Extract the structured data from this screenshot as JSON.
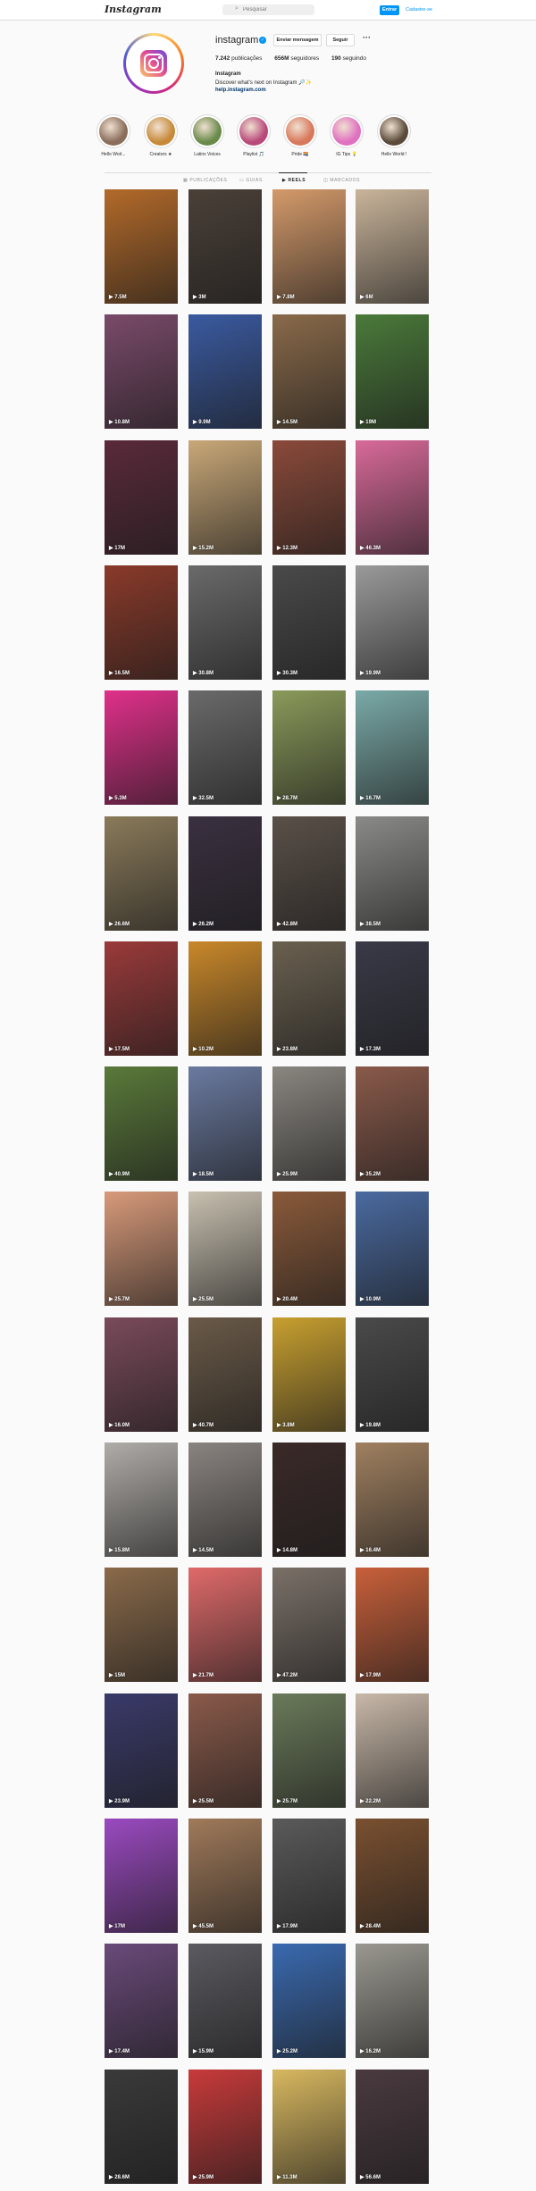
{
  "header": {
    "logo": "Instagram",
    "search_placeholder": "Pesquisar",
    "login_label": "Entrar",
    "signup_label": "Cadastre-se"
  },
  "profile": {
    "username": "instagram",
    "message_label": "Enviar mensagem",
    "follow_label": "Seguir",
    "more_label": "···",
    "stats": [
      {
        "value": "7.242",
        "label": "publicações"
      },
      {
        "value": "656M",
        "label": "seguidores"
      },
      {
        "value": "190",
        "label": "seguindo"
      }
    ],
    "bio_name": "Instagram",
    "bio_text": "Discover what's next on Instagram 🔎✨",
    "bio_link": "help.instagram.com"
  },
  "highlights": [
    {
      "label": "Hello Worl...",
      "color": "#8a6d5a"
    },
    {
      "label": "Creators ★",
      "color": "#c78a3a"
    },
    {
      "label": "Latinx Voices",
      "color": "#6a8a4a"
    },
    {
      "label": "Playlist 🎵",
      "color": "#b84a7a"
    },
    {
      "label": "Pride 🏳️‍🌈",
      "color": "#d8785a"
    },
    {
      "label": "IG Tips 💡",
      "color": "#e070c0"
    },
    {
      "label": "Hello World !",
      "color": "#5a4a3a"
    }
  ],
  "tabs": [
    {
      "label": "PUBLICAÇÕES",
      "icon": "grid-icon"
    },
    {
      "label": "GUIAS",
      "icon": "guide-icon"
    },
    {
      "label": "REELS",
      "icon": "reels-icon"
    },
    {
      "label": "MARCADOS",
      "icon": "tag-icon"
    }
  ],
  "active_tab": 2,
  "reels": [
    {
      "views": "7.5M",
      "color": "#b36a2a"
    },
    {
      "views": "3M",
      "color": "#4a4038"
    },
    {
      "views": "7.8M",
      "color": "#d49a6a"
    },
    {
      "views": "6M",
      "color": "#c9b49a"
    },
    {
      "views": "10.8M",
      "color": "#7a4a6a"
    },
    {
      "views": "9.9M",
      "color": "#3a5aa0"
    },
    {
      "views": "14.5M",
      "color": "#8a6a4a"
    },
    {
      "views": "19M",
      "color": "#4a7a3a"
    },
    {
      "views": "17M",
      "color": "#5a2a3a"
    },
    {
      "views": "15.2M",
      "color": "#c9a878"
    },
    {
      "views": "12.3M",
      "color": "#8a4a3a"
    },
    {
      "views": "46.3M",
      "color": "#d86a9a"
    },
    {
      "views": "16.5M",
      "color": "#8a3a2a"
    },
    {
      "views": "30.8M",
      "color": "#6a6a6a"
    },
    {
      "views": "30.3M",
      "color": "#4a4a4a"
    },
    {
      "views": "19.9M",
      "color": "#9a9a9a"
    },
    {
      "views": "5.3M",
      "color": "#e0308a"
    },
    {
      "views": "32.5M",
      "color": "#6a6a6a"
    },
    {
      "views": "28.7M",
      "color": "#8a9a5a"
    },
    {
      "views": "16.7M",
      "color": "#7aaaa8"
    },
    {
      "views": "26.6M",
      "color": "#8a7a5a"
    },
    {
      "views": "26.2M",
      "color": "#3a3040"
    },
    {
      "views": "42.8M",
      "color": "#5a5048"
    },
    {
      "views": "38.5M",
      "color": "#8a8a88"
    },
    {
      "views": "17.5M",
      "color": "#9a3a3a"
    },
    {
      "views": "10.2M",
      "color": "#c9882a"
    },
    {
      "views": "23.8M",
      "color": "#6a6050"
    },
    {
      "views": "17.3M",
      "color": "#3a3a48"
    },
    {
      "views": "40.9M",
      "color": "#5a7a3a"
    },
    {
      "views": "18.5M",
      "color": "#6a7aa0"
    },
    {
      "views": "25.9M",
      "color": "#8a8680"
    },
    {
      "views": "35.2M",
      "color": "#8a5a4a"
    },
    {
      "views": "25.7M",
      "color": "#d89a7a"
    },
    {
      "views": "25.5M",
      "color": "#c8c0b0"
    },
    {
      "views": "20.4M",
      "color": "#8a5a3a"
    },
    {
      "views": "10.9M",
      "color": "#4a6aa0"
    },
    {
      "views": "16.0M",
      "color": "#7a4a5a"
    },
    {
      "views": "40.7M",
      "color": "#6a5a48"
    },
    {
      "views": "3.8M",
      "color": "#c8a030"
    },
    {
      "views": "19.8M",
      "color": "#4a4a4a"
    },
    {
      "views": "15.8M",
      "color": "#b0aca8"
    },
    {
      "views": "14.5M",
      "color": "#8a8480"
    },
    {
      "views": "14.8M",
      "color": "#3a2a28"
    },
    {
      "views": "16.4M",
      "color": "#a08060"
    },
    {
      "views": "15M",
      "color": "#8a6a4a"
    },
    {
      "views": "21.7M",
      "color": "#e06a6a"
    },
    {
      "views": "47.2M",
      "color": "#7a7068"
    },
    {
      "views": "17.9M",
      "color": "#c8603a"
    },
    {
      "views": "23.9M",
      "color": "#3a3a6a"
    },
    {
      "views": "25.5M",
      "color": "#8a5a4a"
    },
    {
      "views": "25.7M",
      "color": "#6a7a5a"
    },
    {
      "views": "22.2M",
      "color": "#c8b8a8"
    },
    {
      "views": "17M",
      "color": "#9a4ac0"
    },
    {
      "views": "45.5M",
      "color": "#a07a5a"
    },
    {
      "views": "17.9M",
      "color": "#5a5a5a"
    },
    {
      "views": "28.4M",
      "color": "#7a5030"
    },
    {
      "views": "17.4M",
      "color": "#6a4a7a"
    },
    {
      "views": "15.9M",
      "color": "#5a5a60"
    },
    {
      "views": "25.2M",
      "color": "#3a6ab0"
    },
    {
      "views": "16.2M",
      "color": "#9a9890"
    },
    {
      "views": "28.6M",
      "color": "#3a3a3a"
    },
    {
      "views": "25.9M",
      "color": "#c83a3a"
    },
    {
      "views": "11.3M",
      "color": "#d8b860"
    },
    {
      "views": "56.6M",
      "color": "#4a3a40"
    }
  ]
}
